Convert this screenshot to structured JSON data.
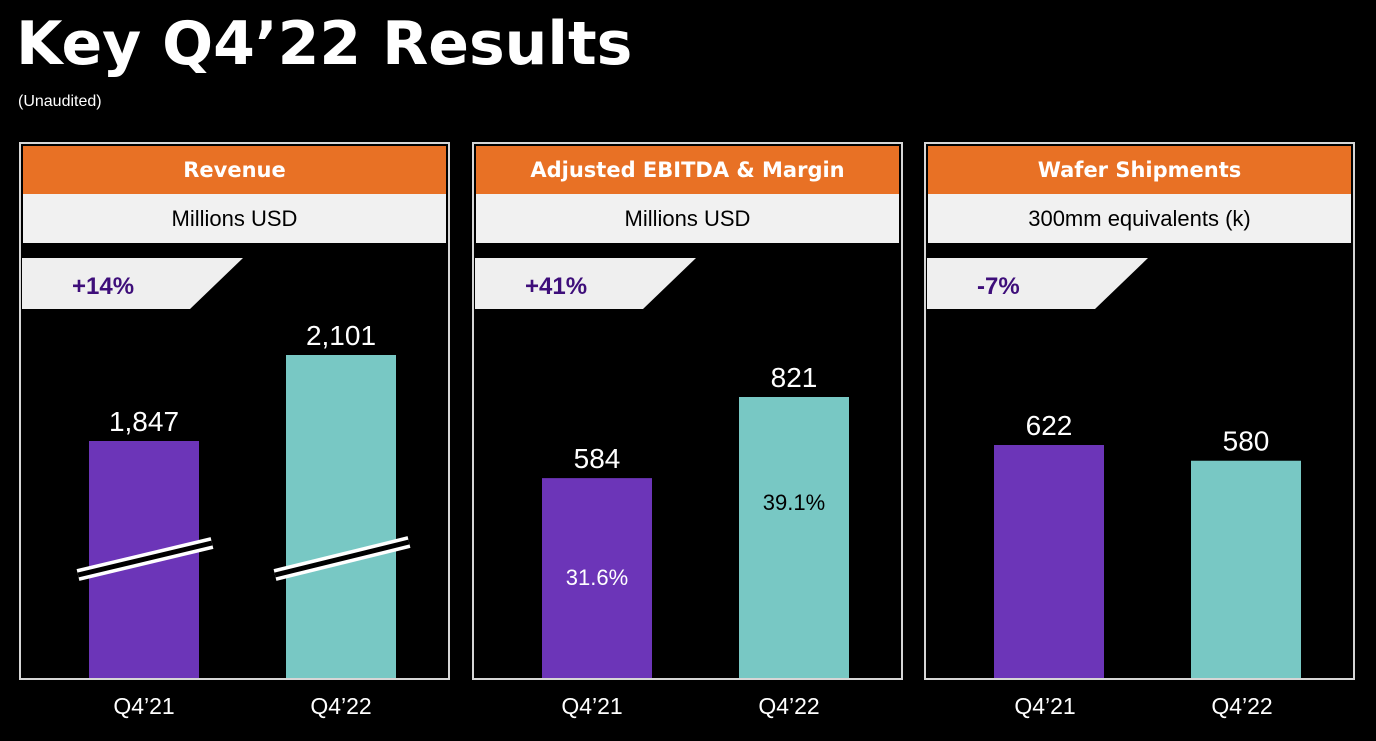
{
  "title": "Key Q4’22 Results",
  "subtitle": "(Unaudited)",
  "colors": {
    "header": "#e87125",
    "q421": "#6c35b8",
    "q422": "#78c8c4",
    "badge_text": "#3e0e7a",
    "badge_bg": "#efefef"
  },
  "chart_data": [
    {
      "type": "bar",
      "title": "Revenue",
      "ylabel": "Millions USD",
      "growth": "+14%",
      "categories": [
        "Q4’21",
        "Q4’22"
      ],
      "values": [
        1847,
        2101
      ],
      "value_labels": [
        "1,847",
        "2,101"
      ],
      "axis_break": true
    },
    {
      "type": "bar",
      "title": "Adjusted EBITDA & Margin",
      "ylabel": "Millions USD",
      "growth": "+41%",
      "categories": [
        "Q4’21",
        "Q4’22"
      ],
      "values": [
        584,
        821
      ],
      "value_labels": [
        "584",
        "821"
      ],
      "margins": [
        "31.6%",
        "39.1%"
      ]
    },
    {
      "type": "bar",
      "title": "Wafer Shipments",
      "ylabel": "300mm equivalents (k)",
      "growth": "-7%",
      "categories": [
        "Q4’21",
        "Q4’22"
      ],
      "values": [
        622,
        580
      ],
      "value_labels": [
        "622",
        "580"
      ]
    }
  ]
}
